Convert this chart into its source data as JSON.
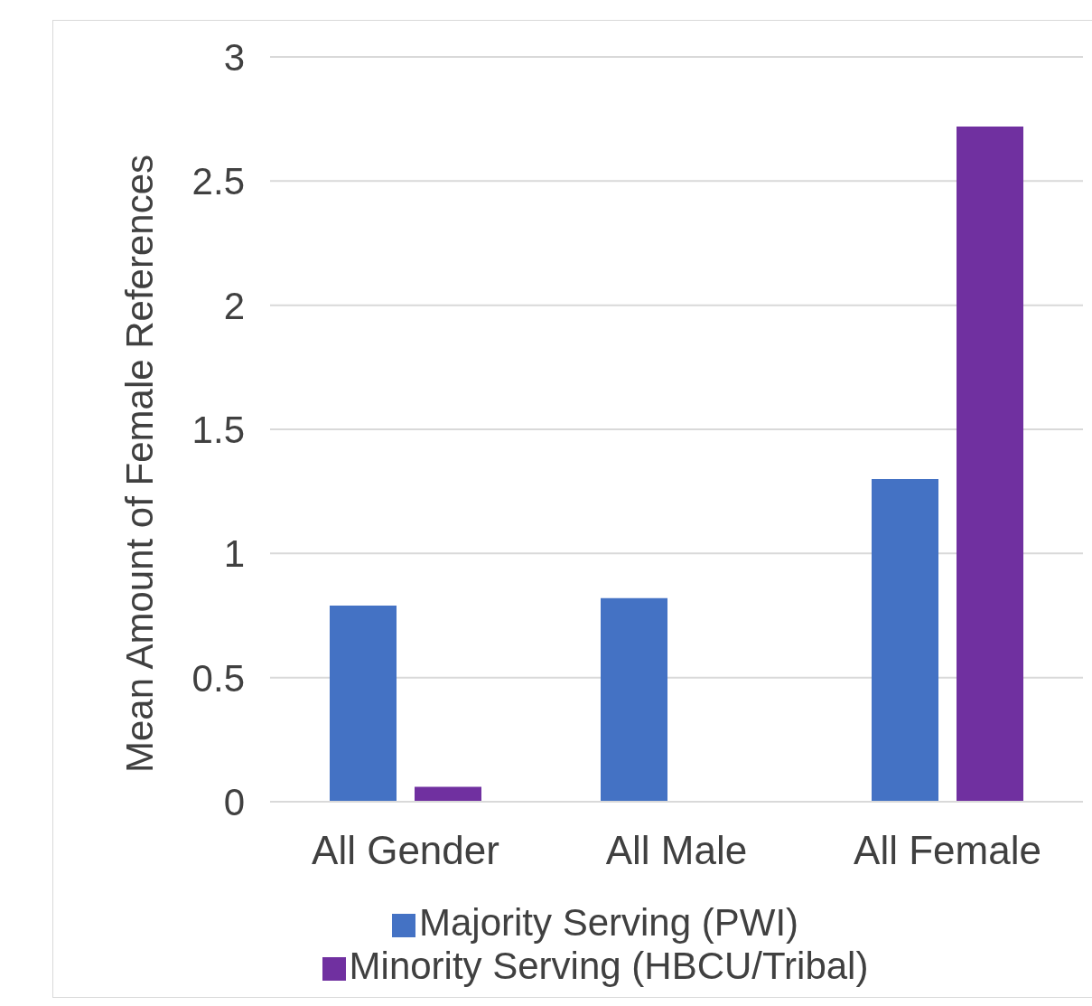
{
  "chart_data": {
    "type": "bar",
    "ylabel": "Mean Amount of Female References",
    "categories": [
      "All Gender",
      "All Male",
      "All Female"
    ],
    "series": [
      {
        "name": "Majority Serving (PWI)",
        "color": "#4472c4",
        "values": [
          0.79,
          0.82,
          1.3
        ]
      },
      {
        "name": "Minority Serving (HBCU/Tribal)",
        "color": "#7030a0",
        "values": [
          0.06,
          0,
          2.72
        ]
      }
    ],
    "ylim": [
      0,
      3
    ],
    "yticks": [
      0,
      0.5,
      1,
      1.5,
      2,
      2.5,
      3
    ],
    "grid": "y",
    "legend": "bottom"
  }
}
